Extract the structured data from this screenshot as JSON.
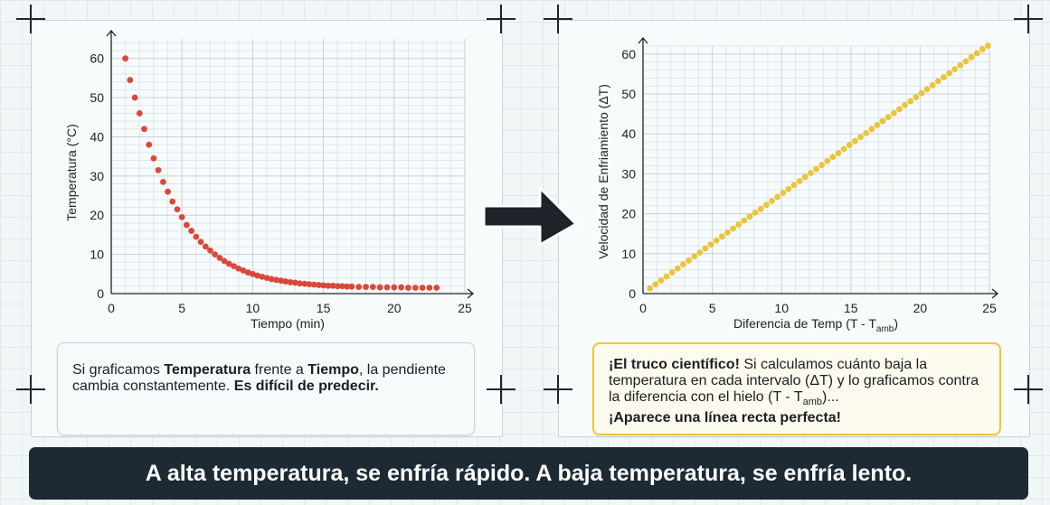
{
  "chart_data": [
    {
      "type": "scatter",
      "xlabel": "Tiempo (min)",
      "ylabel": "Temperatura (°C)",
      "xlim": [
        0,
        25
      ],
      "ylim": [
        0,
        65
      ],
      "xticks": [
        "0",
        "5",
        "10",
        "15",
        "20",
        "25"
      ],
      "yticks": [
        "0",
        "10",
        "20",
        "30",
        "40",
        "50",
        "60"
      ],
      "grid": true,
      "color": "#d9493a",
      "x": [
        1,
        1.33,
        1.67,
        2,
        2.33,
        2.67,
        3,
        3.33,
        3.67,
        4,
        4.33,
        4.67,
        5,
        5.33,
        5.67,
        6,
        6.33,
        6.67,
        7,
        7.33,
        7.67,
        8,
        8.33,
        8.67,
        9,
        9.33,
        9.67,
        10,
        10.33,
        10.67,
        11,
        11.33,
        11.67,
        12,
        12.33,
        12.67,
        13,
        13.33,
        13.67,
        14,
        14.33,
        14.67,
        15,
        15.33,
        15.67,
        16,
        16.33,
        16.67,
        17,
        17.5,
        18,
        18.5,
        19,
        19.5,
        20,
        20.5,
        21,
        21.5,
        22,
        22.5,
        23
      ],
      "y": [
        60,
        54.5,
        50,
        46,
        42,
        38,
        34.5,
        31.5,
        28.5,
        26,
        23.5,
        21.5,
        19.5,
        17.5,
        16,
        14.5,
        13.2,
        12,
        11,
        10,
        9.1,
        8.3,
        7.6,
        7,
        6.4,
        5.9,
        5.4,
        5,
        4.6,
        4.3,
        4,
        3.7,
        3.5,
        3.3,
        3.1,
        2.9,
        2.8,
        2.6,
        2.5,
        2.4,
        2.3,
        2.2,
        2.1,
        2,
        2,
        1.9,
        1.9,
        1.8,
        1.8,
        1.7,
        1.7,
        1.7,
        1.6,
        1.6,
        1.6,
        1.6,
        1.5,
        1.5,
        1.5,
        1.5,
        1.5
      ]
    },
    {
      "type": "scatter",
      "xlabel_main": "Diferencia de Temp (T - T",
      "xlabel_sub": "amb",
      "xlabel_end": ")",
      "ylabel": "Velocidad de Enfriamiento (ΔT)",
      "xlim": [
        0,
        25
      ],
      "ylim": [
        0,
        62
      ],
      "xticks": [
        "0",
        "5",
        "10",
        "15",
        "20",
        "25"
      ],
      "yticks": [
        "0",
        "10",
        "20",
        "30",
        "40",
        "50",
        "60"
      ],
      "grid": true,
      "color": "#eac43a",
      "x": [
        0.5,
        0.9,
        1.3,
        1.7,
        2.1,
        2.5,
        2.9,
        3.3,
        3.7,
        4.1,
        4.5,
        4.9,
        5.3,
        5.7,
        6.1,
        6.5,
        6.9,
        7.3,
        7.7,
        8.1,
        8.5,
        8.9,
        9.3,
        9.7,
        10.1,
        10.5,
        10.9,
        11.3,
        11.7,
        12.1,
        12.5,
        12.9,
        13.3,
        13.7,
        14.1,
        14.5,
        14.9,
        15.3,
        15.7,
        16.1,
        16.5,
        16.9,
        17.3,
        17.7,
        18.1,
        18.5,
        18.9,
        19.3,
        19.7,
        20.1,
        20.5,
        20.9,
        21.3,
        21.7,
        22.1,
        22.5,
        22.9,
        23.3,
        23.7,
        24.1,
        24.5,
        24.9
      ],
      "y": [
        1.3,
        2.3,
        3.3,
        4.3,
        5.3,
        6.3,
        7.3,
        8.3,
        9.3,
        10.3,
        11.3,
        12.3,
        13.3,
        14.3,
        15.3,
        16.3,
        17.3,
        18.3,
        19.3,
        20.3,
        21.2,
        22.2,
        23.2,
        24.2,
        25.2,
        26.2,
        27.2,
        28.2,
        29.2,
        30.2,
        31.2,
        32.2,
        33.2,
        34.2,
        35.2,
        36.2,
        37.2,
        38.2,
        39.2,
        40.2,
        41.2,
        42.2,
        43.2,
        44.2,
        45.2,
        46.2,
        47.2,
        48.2,
        49.2,
        50.2,
        51.2,
        52.2,
        53.2,
        54.2,
        55.2,
        56.2,
        57.2,
        58.2,
        59.2,
        60.2,
        61.2,
        62.1
      ]
    }
  ],
  "caption_left": {
    "t1": "Si graficamos ",
    "b1": "Temperatura",
    "t2": " frente a ",
    "b2": "Tiempo",
    "t3": ", la pendiente cambia constantemente. ",
    "b3": "Es difícil de predecir."
  },
  "caption_right": {
    "b1": "¡El truco científico!",
    "t1": " Si calculamos cuánto baja la temperatura en cada intervalo (ΔT) y lo graficamos contra la diferencia con el hielo (T - T",
    "sub": "amb",
    "t2": ")...",
    "b2": "¡Aparece una línea recta perfecta!"
  },
  "banner": "A alta temperatura, se enfría rápido. A baja temperatura, se enfría lento."
}
